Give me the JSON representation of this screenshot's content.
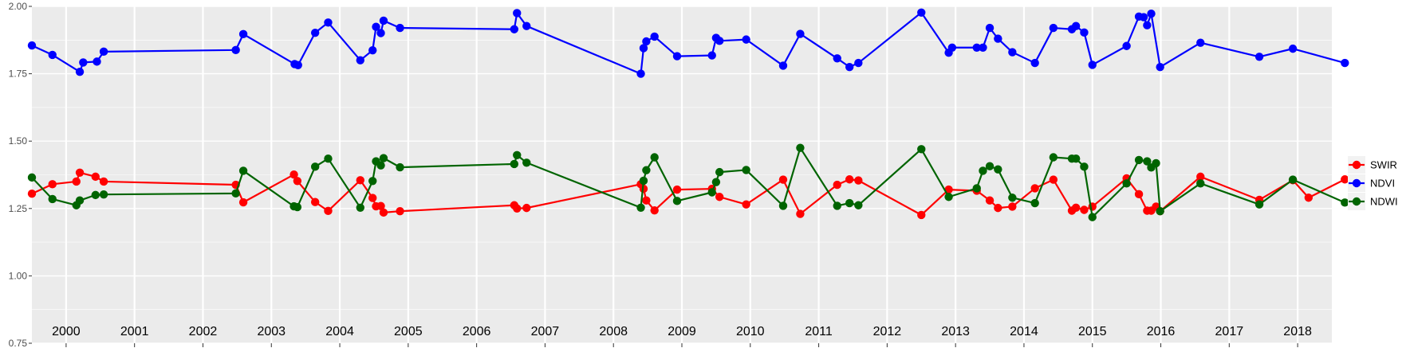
{
  "chart_data": {
    "type": "line",
    "title": "",
    "xlabel": "",
    "ylabel": "",
    "ylim": [
      0.75,
      2.0
    ],
    "yticks": [
      "0.75",
      "1.00",
      "1.25",
      "1.50",
      "1.75",
      "2.00"
    ],
    "year_range": [
      2000,
      2019
    ],
    "year_labels": [
      "2000",
      "2001",
      "2002",
      "2003",
      "2004",
      "2005",
      "2006",
      "2007",
      "2008",
      "2009",
      "2010",
      "2011",
      "2012",
      "2013",
      "2014",
      "2015",
      "2016",
      "2017",
      "2018"
    ],
    "grid": true,
    "legend_position": "right",
    "series": [
      {
        "name": "SWIR",
        "color": "#ff0000",
        "points": [
          [
            2000.0,
            1.305
          ],
          [
            2000.3,
            1.34
          ],
          [
            2000.65,
            1.35
          ],
          [
            2000.7,
            1.383
          ],
          [
            2000.93,
            1.368
          ],
          [
            2001.05,
            1.35
          ],
          [
            2002.98,
            1.338
          ],
          [
            2003.09,
            1.273
          ],
          [
            2003.83,
            1.376
          ],
          [
            2003.88,
            1.352
          ],
          [
            2004.14,
            1.274
          ],
          [
            2004.33,
            1.241
          ],
          [
            2004.8,
            1.355
          ],
          [
            2004.98,
            1.289
          ],
          [
            2005.03,
            1.258
          ],
          [
            2005.1,
            1.259
          ],
          [
            2005.14,
            1.235
          ],
          [
            2005.38,
            1.24
          ],
          [
            2007.05,
            1.262
          ],
          [
            2007.09,
            1.25
          ],
          [
            2007.23,
            1.252
          ],
          [
            2008.9,
            1.34
          ],
          [
            2008.94,
            1.323
          ],
          [
            2008.98,
            1.28
          ],
          [
            2009.1,
            1.243
          ],
          [
            2009.43,
            1.32
          ],
          [
            2009.94,
            1.323
          ],
          [
            2010.05,
            1.293
          ],
          [
            2010.44,
            1.265
          ],
          [
            2010.98,
            1.357
          ],
          [
            2011.23,
            1.23
          ],
          [
            2011.77,
            1.338
          ],
          [
            2011.95,
            1.358
          ],
          [
            2012.08,
            1.354
          ],
          [
            2013.0,
            1.226
          ],
          [
            2013.4,
            1.32
          ],
          [
            2013.81,
            1.316
          ],
          [
            2014.0,
            1.28
          ],
          [
            2014.12,
            1.252
          ],
          [
            2014.33,
            1.257
          ],
          [
            2014.66,
            1.325
          ],
          [
            2014.93,
            1.357
          ],
          [
            2015.2,
            1.242
          ],
          [
            2015.26,
            1.253
          ],
          [
            2015.38,
            1.245
          ],
          [
            2015.5,
            1.257
          ],
          [
            2016.0,
            1.362
          ],
          [
            2016.18,
            1.303
          ],
          [
            2016.3,
            1.242
          ],
          [
            2016.36,
            1.242
          ],
          [
            2016.43,
            1.257
          ],
          [
            2016.49,
            1.24
          ],
          [
            2017.08,
            1.368
          ],
          [
            2017.94,
            1.282
          ],
          [
            2018.43,
            1.355
          ],
          [
            2018.66,
            1.29
          ],
          [
            2019.19,
            1.358
          ]
        ]
      },
      {
        "name": "NDVI",
        "color": "#0000ff",
        "points": [
          [
            2000.0,
            1.855
          ],
          [
            2000.3,
            1.82
          ],
          [
            2000.7,
            1.757
          ],
          [
            2000.75,
            1.792
          ],
          [
            2000.95,
            1.795
          ],
          [
            2001.05,
            1.832
          ],
          [
            2002.98,
            1.838
          ],
          [
            2003.09,
            1.897
          ],
          [
            2003.84,
            1.786
          ],
          [
            2003.89,
            1.782
          ],
          [
            2004.14,
            1.902
          ],
          [
            2004.33,
            1.94
          ],
          [
            2004.8,
            1.8
          ],
          [
            2004.98,
            1.837
          ],
          [
            2005.03,
            1.924
          ],
          [
            2005.1,
            1.901
          ],
          [
            2005.14,
            1.947
          ],
          [
            2005.38,
            1.92
          ],
          [
            2007.05,
            1.915
          ],
          [
            2007.09,
            1.975
          ],
          [
            2007.23,
            1.927
          ],
          [
            2008.9,
            1.75
          ],
          [
            2008.94,
            1.845
          ],
          [
            2008.98,
            1.87
          ],
          [
            2009.1,
            1.888
          ],
          [
            2009.43,
            1.815
          ],
          [
            2009.94,
            1.818
          ],
          [
            2010.0,
            1.883
          ],
          [
            2010.05,
            1.872
          ],
          [
            2010.44,
            1.877
          ],
          [
            2010.98,
            1.78
          ],
          [
            2011.23,
            1.898
          ],
          [
            2011.77,
            1.807
          ],
          [
            2011.95,
            1.775
          ],
          [
            2012.08,
            1.79
          ],
          [
            2013.0,
            1.977
          ],
          [
            2013.4,
            1.828
          ],
          [
            2013.45,
            1.847
          ],
          [
            2013.81,
            1.847
          ],
          [
            2013.9,
            1.847
          ],
          [
            2014.0,
            1.92
          ],
          [
            2014.12,
            1.88
          ],
          [
            2014.33,
            1.83
          ],
          [
            2014.66,
            1.79
          ],
          [
            2014.93,
            1.92
          ],
          [
            2015.2,
            1.915
          ],
          [
            2015.26,
            1.927
          ],
          [
            2015.38,
            1.903
          ],
          [
            2015.5,
            1.783
          ],
          [
            2016.0,
            1.853
          ],
          [
            2016.18,
            1.962
          ],
          [
            2016.25,
            1.96
          ],
          [
            2016.3,
            1.93
          ],
          [
            2016.36,
            1.973
          ],
          [
            2016.49,
            1.775
          ],
          [
            2017.08,
            1.865
          ],
          [
            2017.94,
            1.813
          ],
          [
            2018.43,
            1.843
          ],
          [
            2019.19,
            1.79
          ]
        ]
      },
      {
        "name": "NDWI",
        "color": "#006400",
        "points": [
          [
            2000.0,
            1.365
          ],
          [
            2000.3,
            1.285
          ],
          [
            2000.65,
            1.262
          ],
          [
            2000.7,
            1.28
          ],
          [
            2000.93,
            1.3
          ],
          [
            2001.05,
            1.302
          ],
          [
            2002.98,
            1.306
          ],
          [
            2003.09,
            1.39
          ],
          [
            2003.83,
            1.258
          ],
          [
            2003.88,
            1.255
          ],
          [
            2004.14,
            1.405
          ],
          [
            2004.33,
            1.435
          ],
          [
            2004.8,
            1.253
          ],
          [
            2004.98,
            1.352
          ],
          [
            2005.03,
            1.425
          ],
          [
            2005.1,
            1.41
          ],
          [
            2005.14,
            1.437
          ],
          [
            2005.38,
            1.403
          ],
          [
            2007.05,
            1.415
          ],
          [
            2007.09,
            1.448
          ],
          [
            2007.23,
            1.42
          ],
          [
            2008.9,
            1.253
          ],
          [
            2008.94,
            1.353
          ],
          [
            2008.98,
            1.392
          ],
          [
            2009.1,
            1.44
          ],
          [
            2009.43,
            1.278
          ],
          [
            2009.94,
            1.31
          ],
          [
            2010.0,
            1.348
          ],
          [
            2010.05,
            1.385
          ],
          [
            2010.44,
            1.393
          ],
          [
            2010.98,
            1.26
          ],
          [
            2011.23,
            1.475
          ],
          [
            2011.77,
            1.26
          ],
          [
            2011.95,
            1.27
          ],
          [
            2012.08,
            1.262
          ],
          [
            2013.0,
            1.47
          ],
          [
            2013.4,
            1.293
          ],
          [
            2013.81,
            1.325
          ],
          [
            2013.9,
            1.39
          ],
          [
            2014.0,
            1.407
          ],
          [
            2014.12,
            1.395
          ],
          [
            2014.33,
            1.29
          ],
          [
            2014.66,
            1.27
          ],
          [
            2014.93,
            1.44
          ],
          [
            2015.2,
            1.435
          ],
          [
            2015.26,
            1.435
          ],
          [
            2015.38,
            1.405
          ],
          [
            2015.5,
            1.218
          ],
          [
            2016.0,
            1.343
          ],
          [
            2016.18,
            1.43
          ],
          [
            2016.3,
            1.425
          ],
          [
            2016.36,
            1.402
          ],
          [
            2016.43,
            1.418
          ],
          [
            2016.49,
            1.24
          ],
          [
            2017.08,
            1.343
          ],
          [
            2017.94,
            1.265
          ],
          [
            2018.43,
            1.357
          ],
          [
            2019.19,
            1.272
          ]
        ]
      }
    ]
  }
}
